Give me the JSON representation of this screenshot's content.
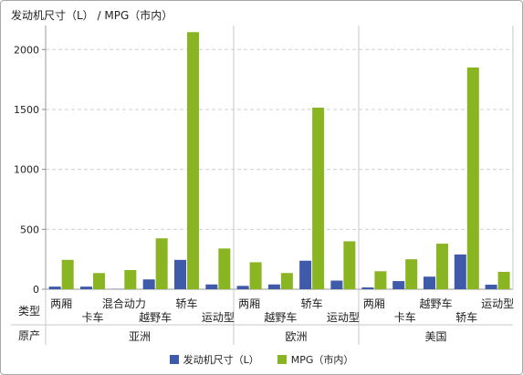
{
  "chart_data": {
    "type": "bar",
    "title": "发动机尺寸（L） / MPG（市内）",
    "row_header_type": "类型",
    "row_header_origin": "原产",
    "ylim": [
      0,
      2200
    ],
    "yticks": [
      0,
      500,
      1000,
      1500,
      2000
    ],
    "grid": true,
    "legend_position": "bottom",
    "colors": {
      "engine": "#3f5aa8",
      "mpg": "#8ab522"
    },
    "series_names": [
      "发动机尺寸（L）",
      "MPG（市内）"
    ],
    "groups": [
      {
        "origin": "亚洲",
        "categories": [
          {
            "label": "两厢",
            "row": 0,
            "engine": 22,
            "mpg": 245
          },
          {
            "label": "卡车",
            "row": 1,
            "engine": 22,
            "mpg": 135
          },
          {
            "label": "混合动力",
            "row": 0,
            "engine": 2,
            "mpg": 160
          },
          {
            "label": "越野车",
            "row": 1,
            "engine": 82,
            "mpg": 425
          },
          {
            "label": "轿车",
            "row": 0,
            "engine": 245,
            "mpg": 2145
          },
          {
            "label": "运动型",
            "row": 1,
            "engine": 40,
            "mpg": 340
          }
        ]
      },
      {
        "origin": "欧洲",
        "categories": [
          {
            "label": "两厢",
            "row": 0,
            "engine": 28,
            "mpg": 225
          },
          {
            "label": "越野车",
            "row": 1,
            "engine": 40,
            "mpg": 135
          },
          {
            "label": "轿车",
            "row": 0,
            "engine": 238,
            "mpg": 1515
          },
          {
            "label": "运动型",
            "row": 1,
            "engine": 72,
            "mpg": 400
          }
        ]
      },
      {
        "origin": "美国",
        "categories": [
          {
            "label": "两厢",
            "row": 0,
            "engine": 15,
            "mpg": 150
          },
          {
            "label": "卡车",
            "row": 1,
            "engine": 68,
            "mpg": 250
          },
          {
            "label": "越野车",
            "row": 0,
            "engine": 105,
            "mpg": 380
          },
          {
            "label": "轿车",
            "row": 1,
            "engine": 290,
            "mpg": 1850
          },
          {
            "label": "运动型",
            "row": 0,
            "engine": 38,
            "mpg": 145
          }
        ]
      }
    ]
  }
}
